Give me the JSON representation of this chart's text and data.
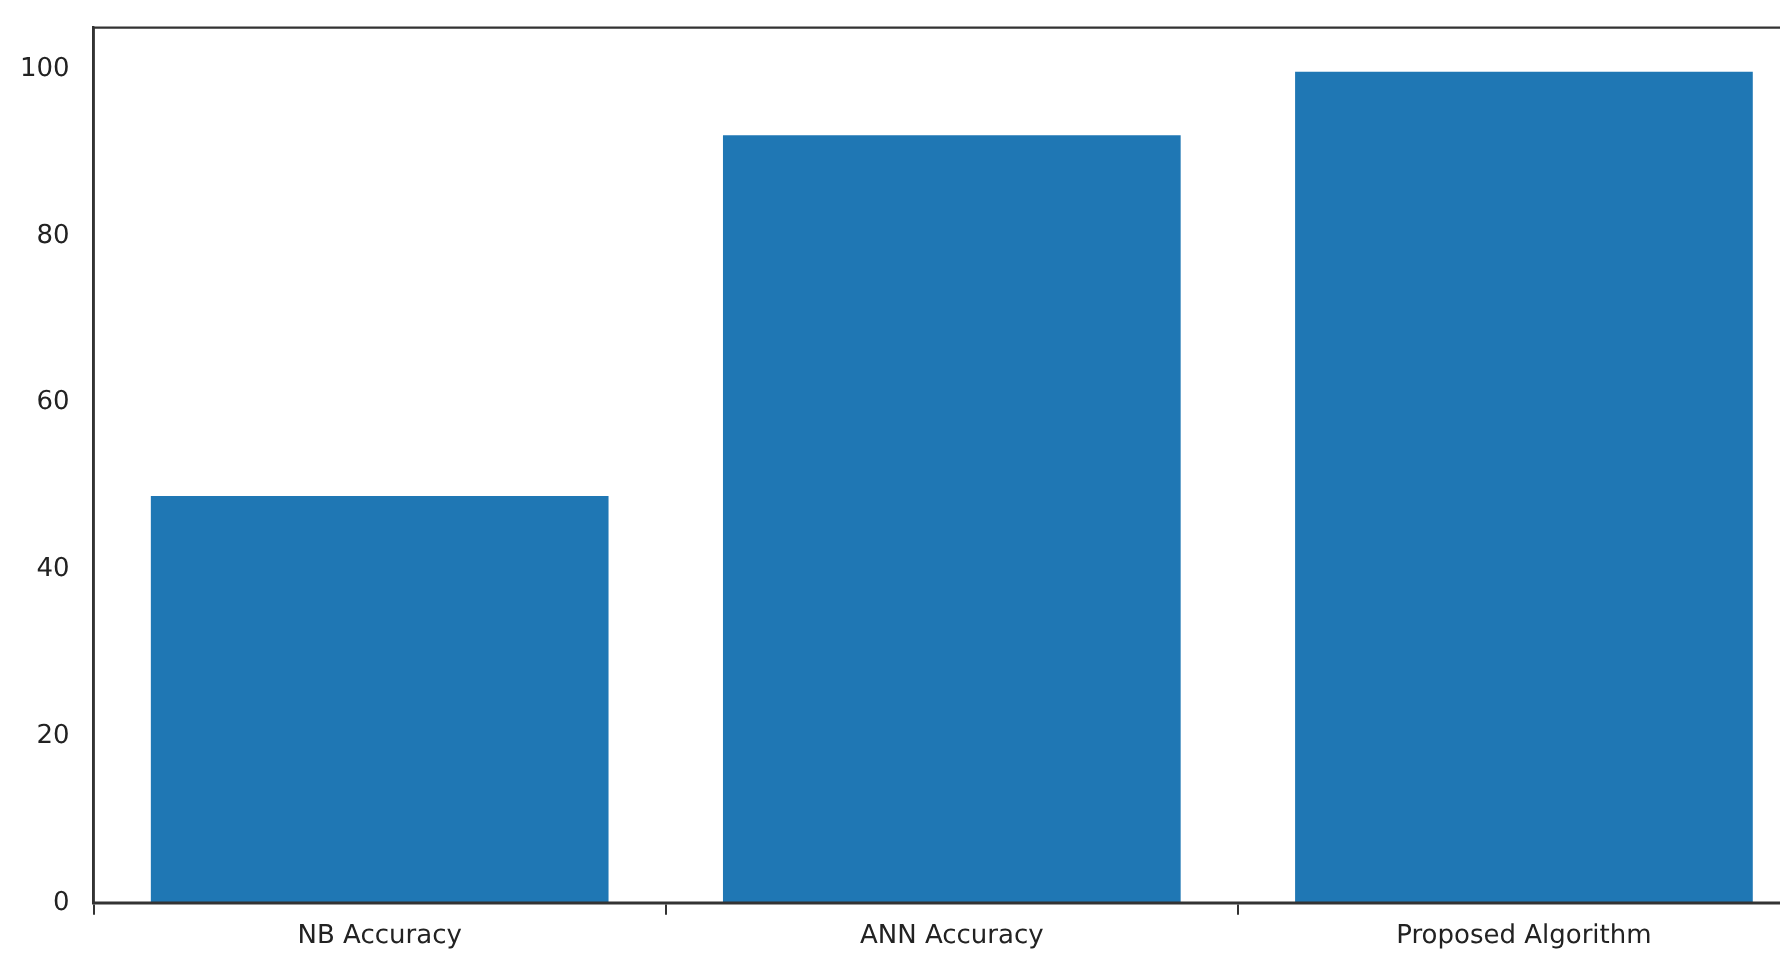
{
  "chart_data": {
    "type": "bar",
    "categories": [
      "NB Accuracy",
      "ANN Accuracy",
      "Proposed Algorithm"
    ],
    "values": [
      48.8,
      92.1,
      99.7
    ],
    "color": "#1f77b4",
    "ylim": [
      0,
      105
    ],
    "yticks": [
      0,
      20,
      40,
      60,
      80,
      100
    ],
    "grid": false,
    "legend": false
  }
}
